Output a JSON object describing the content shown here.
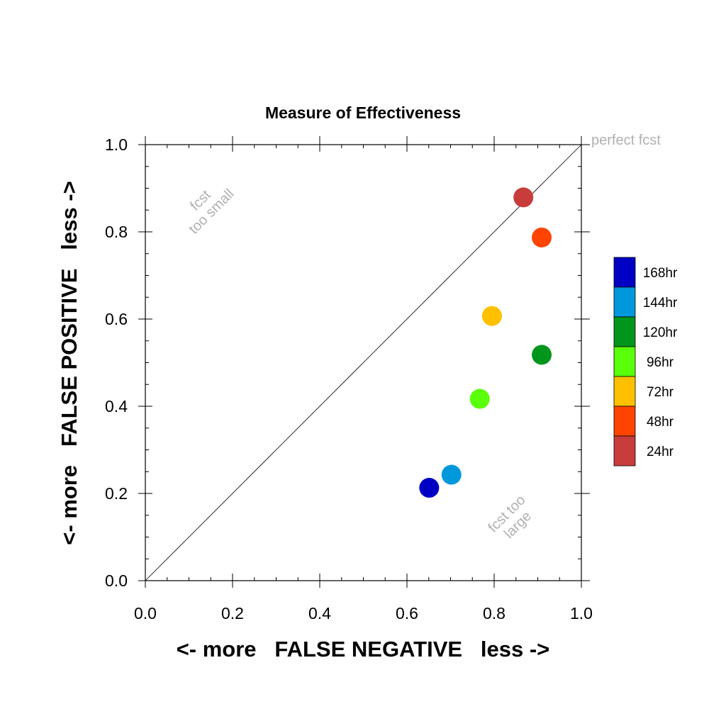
{
  "chart_data": {
    "type": "scatter",
    "title": "Measure of Effectiveness",
    "xlabel": "<- more   FALSE NEGATIVE   less ->",
    "ylabel": "<- more   FALSE POSITIVE   less ->",
    "xlim": [
      0,
      1
    ],
    "ylim": [
      0,
      1
    ],
    "xticks": [
      "0.0",
      "0.2",
      "0.4",
      "0.6",
      "0.8",
      "1.0"
    ],
    "yticks": [
      "0.0",
      "0.2",
      "0.4",
      "0.6",
      "0.8",
      "1.0"
    ],
    "grid": false,
    "diagonal_line": true,
    "legend_position": "right",
    "series": [
      {
        "name": "168hr",
        "color": "#0000c4",
        "x": 0.651,
        "y": 0.213
      },
      {
        "name": "144hr",
        "color": "#0098dc",
        "x": 0.702,
        "y": 0.243
      },
      {
        "name": "120hr",
        "color": "#00961c",
        "x": 0.909,
        "y": 0.518
      },
      {
        "name": "96hr",
        "color": "#5aff0a",
        "x": 0.767,
        "y": 0.417
      },
      {
        "name": "72hr",
        "color": "#ffc000",
        "x": 0.795,
        "y": 0.607
      },
      {
        "name": "48hr",
        "color": "#ff4400",
        "x": 0.909,
        "y": 0.787
      },
      {
        "name": "24hr",
        "color": "#c83c3c",
        "x": 0.867,
        "y": 0.879
      }
    ],
    "annotations": {
      "perfect": "perfect fcst",
      "small_line1": "fcst",
      "small_line2": "too small",
      "large_line1": "fcst too",
      "large_line2": "large"
    }
  }
}
